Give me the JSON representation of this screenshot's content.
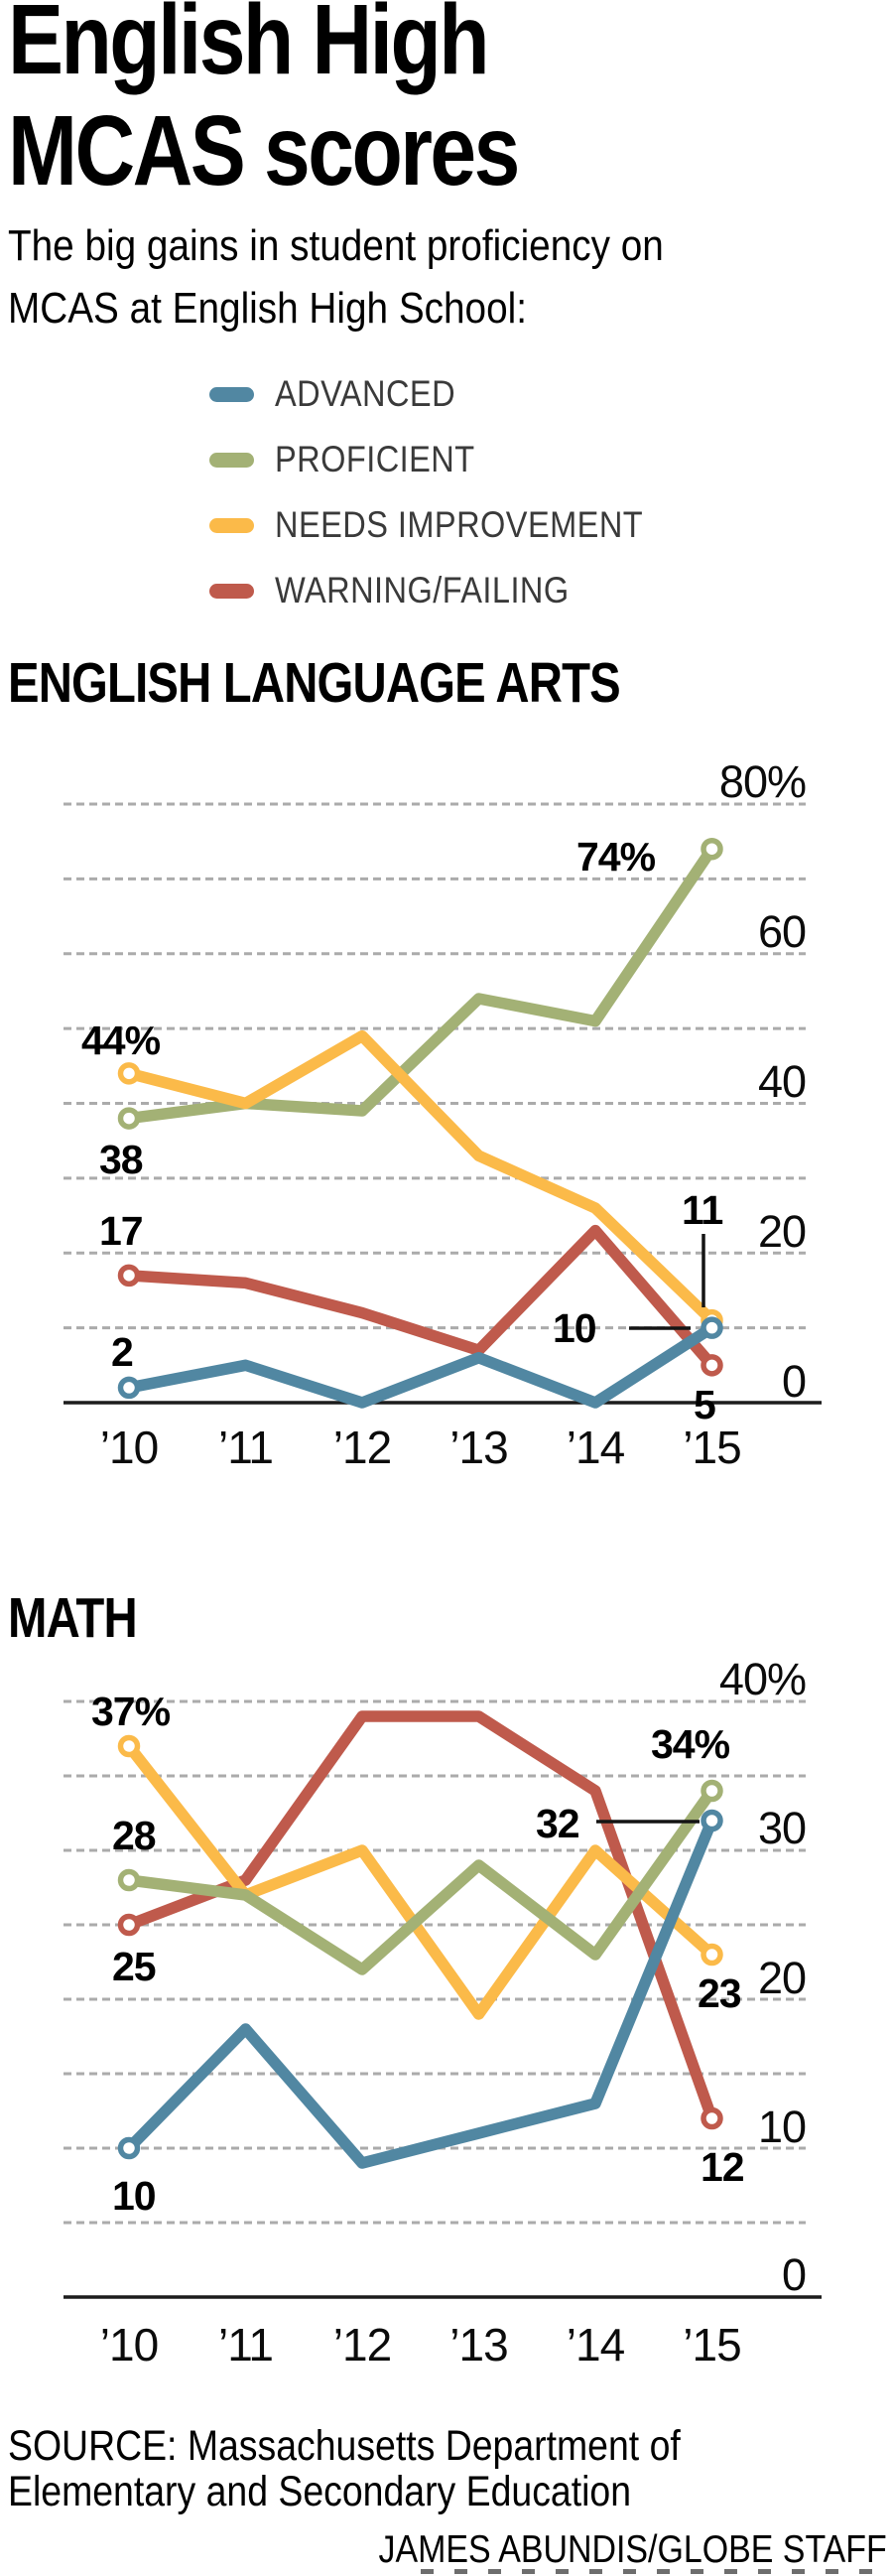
{
  "title": {
    "line1": "English High",
    "line2": "MCAS scores"
  },
  "subtitle": {
    "line1": "The big gains in student proficiency on",
    "line2": "MCAS at English High School:"
  },
  "legend": [
    {
      "label": "ADVANCED",
      "color": "#5187A2"
    },
    {
      "label": "PROFICIENT",
      "color": "#A3B175"
    },
    {
      "label": "NEEDS IMPROVEMENT",
      "color": "#FBBA49"
    },
    {
      "label": "WARNING/FAILING",
      "color": "#BF5A4C"
    }
  ],
  "style": {
    "grid_color": "#ABABAB",
    "axis_color": "#1C1C1C",
    "legend_text_color": "#3A3A3A"
  },
  "source": {
    "line1": "SOURCE: Massachusetts Department of",
    "line2": "Elementary and Secondary Education",
    "credit": "JAMES ABUNDIS/GLOBE STAFF"
  },
  "chart_data": [
    {
      "id": "ela",
      "type": "line",
      "title": "ENGLISH LANGUAGE ARTS",
      "x_categories": [
        "’10",
        "’11",
        "’12",
        "’13",
        "’14",
        "’15"
      ],
      "ylim": [
        0,
        80
      ],
      "grid": {
        "step": 10,
        "style": "dashed",
        "labeled_every": 20
      },
      "legend_position": "shared-top",
      "yticks": [
        {
          "value": 80,
          "label": "80%"
        },
        {
          "value": 60,
          "label": "60"
        },
        {
          "value": 40,
          "label": "40"
        },
        {
          "value": 20,
          "label": "20"
        },
        {
          "value": 0,
          "label": "0"
        }
      ],
      "series": [
        {
          "name": "ADVANCED",
          "color": "#5187A2",
          "values": [
            2,
            5,
            0,
            6,
            0,
            10
          ]
        },
        {
          "name": "PROFICIENT",
          "color": "#A3B175",
          "values": [
            38,
            40,
            39,
            54,
            51,
            74
          ]
        },
        {
          "name": "NEEDS IMPROVEMENT",
          "color": "#FBBA49",
          "values": [
            44,
            40,
            49,
            33,
            26,
            11
          ]
        },
        {
          "name": "WARNING/FAILING",
          "color": "#BF5A4C",
          "values": [
            17,
            16,
            12,
            7,
            23,
            5
          ]
        }
      ],
      "point_labels": {
        "ni_first": "44%",
        "p_first": "38",
        "w_first": "17",
        "a_first": "2",
        "p_last": "74%",
        "ni_last": "11",
        "a_last": "10",
        "w_last": "5"
      }
    },
    {
      "id": "math",
      "type": "line",
      "title": "MATH",
      "x_categories": [
        "’10",
        "’11",
        "’12",
        "’13",
        "’14",
        "’15"
      ],
      "ylim": [
        0,
        40
      ],
      "grid": {
        "step": 5,
        "style": "dashed",
        "labeled_every": 10
      },
      "legend_position": "shared-top",
      "yticks": [
        {
          "value": 40,
          "label": "40%"
        },
        {
          "value": 30,
          "label": "30"
        },
        {
          "value": 20,
          "label": "20"
        },
        {
          "value": 10,
          "label": "10"
        },
        {
          "value": 0,
          "label": "0"
        }
      ],
      "series": [
        {
          "name": "ADVANCED",
          "color": "#5187A2",
          "values": [
            10,
            18,
            9,
            11,
            13,
            32
          ]
        },
        {
          "name": "PROFICIENT",
          "color": "#A3B175",
          "values": [
            28,
            27,
            22,
            29,
            23,
            34
          ]
        },
        {
          "name": "NEEDS IMPROVEMENT",
          "color": "#FBBA49",
          "values": [
            37,
            27,
            30,
            19,
            30,
            23
          ]
        },
        {
          "name": "WARNING/FAILING",
          "color": "#BF5A4C",
          "values": [
            25,
            28,
            39,
            39,
            34,
            12
          ]
        }
      ],
      "point_labels": {
        "ni_first": "37%",
        "p_first": "28",
        "w_first": "25",
        "a_first": "10",
        "p_last": "34%",
        "a_last": "32",
        "ni_last": "23",
        "w_last": "12"
      }
    }
  ]
}
